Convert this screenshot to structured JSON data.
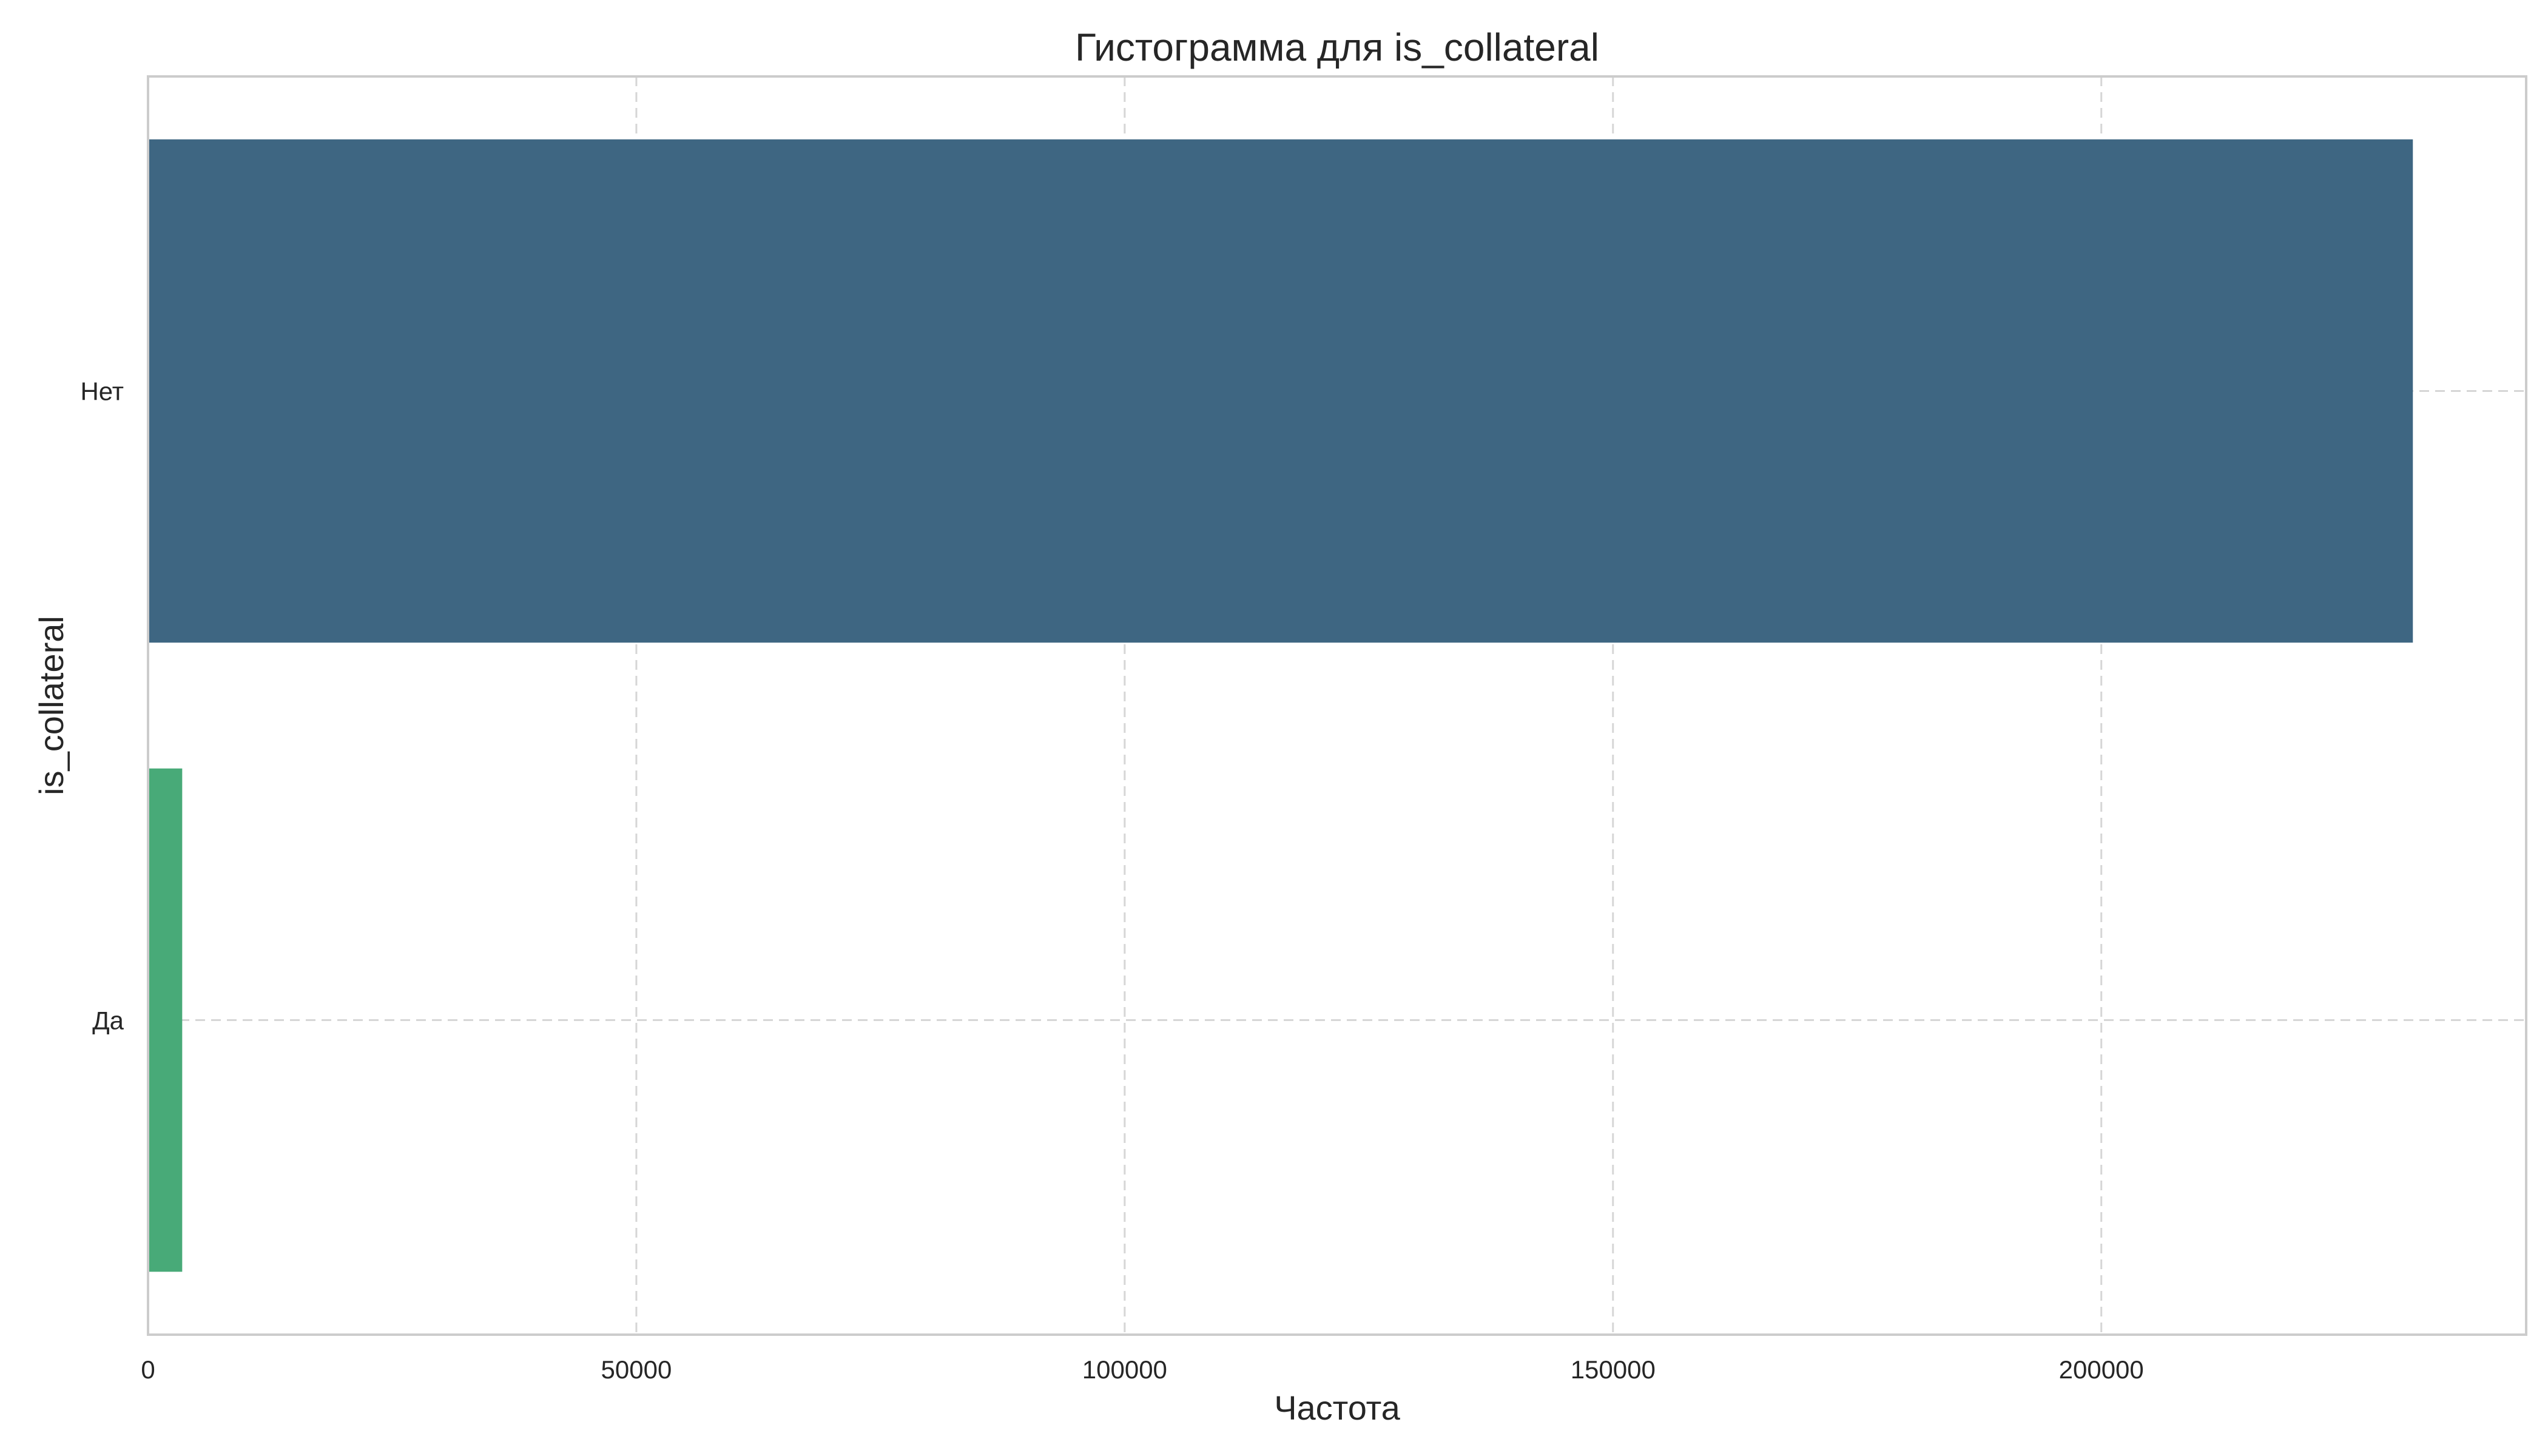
{
  "chart_data": {
    "type": "bar",
    "orientation": "horizontal",
    "title": "Гистограмма для is_collateral",
    "xlabel": "Частота",
    "ylabel": "is_collateral",
    "categories": [
      "Нет",
      "Да"
    ],
    "values": [
      231900,
      3500
    ],
    "colors": [
      "#3e6682",
      "#48aa78"
    ],
    "xlim": [
      0,
      243500
    ],
    "xticks": [
      0,
      50000,
      100000,
      150000,
      200000
    ],
    "grid": true
  }
}
